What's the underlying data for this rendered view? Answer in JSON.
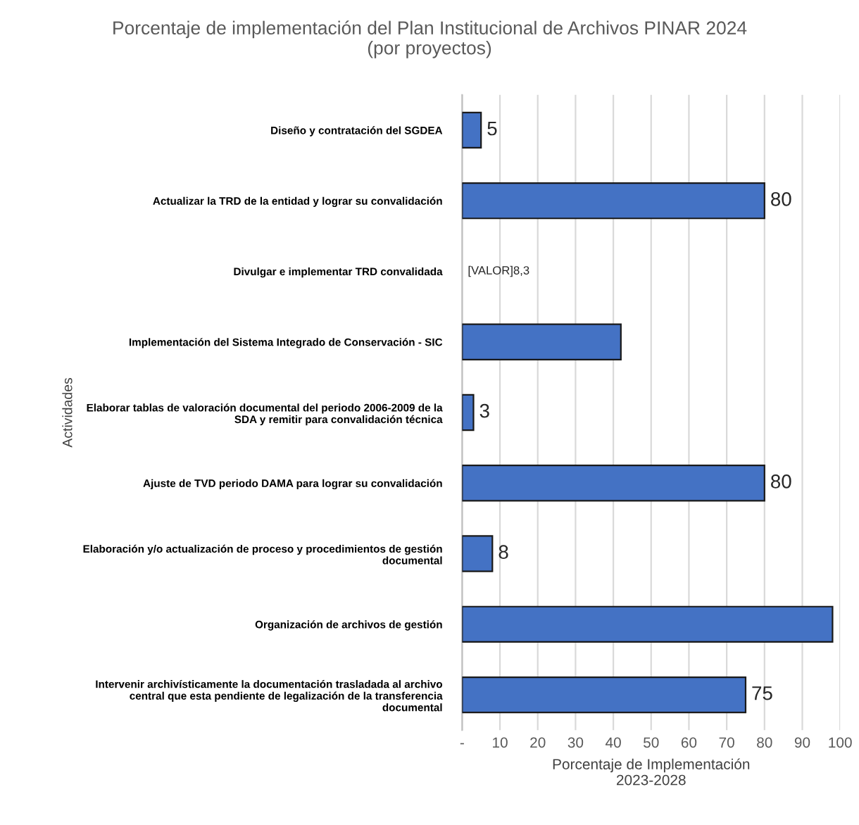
{
  "chart_data": {
    "type": "bar",
    "orientation": "horizontal",
    "title": "Porcentaje de implementación del Plan Institucional de Archivos PINAR 2024\n(por proyectos)",
    "xlabel": "Porcentaje de Implementación\n2023-2028",
    "ylabel": "Actividades",
    "categories": [
      "Diseño y contratación del SGDEA",
      "Actualizar la TRD de la entidad y lograr su convalidación",
      "Divulgar e implementar TRD convalidada",
      "Implementación del Sistema Integrado de Conservación - SIC",
      "Elaborar tablas de valoración documental del periodo 2006-2009 de la\nSDA y remitir para convalidación técnica",
      "Ajuste de TVD periodo DAMA para lograr su convalidación",
      "Elaboración y/o actualización de proceso y procedimientos de gestión\ndocumental",
      "Organización de archivos de gestión",
      "Intervenir archivísticamente la documentación trasladada al archivo\ncentral que esta pendiente de legalización de la transferencia\ndocumental"
    ],
    "values": [
      5,
      80,
      null,
      42,
      3,
      80,
      8,
      98,
      75
    ],
    "value_labels": [
      "5",
      "80",
      "[VALOR]8,3",
      null,
      "3",
      "80",
      "8",
      null,
      "75"
    ],
    "color": "#4472c4",
    "xlim": [
      0,
      100
    ],
    "xticks": [
      {
        "value": 0,
        "label": "-"
      },
      10,
      20,
      30,
      40,
      50,
      60,
      70,
      80,
      90,
      100
    ],
    "grid": "x"
  }
}
